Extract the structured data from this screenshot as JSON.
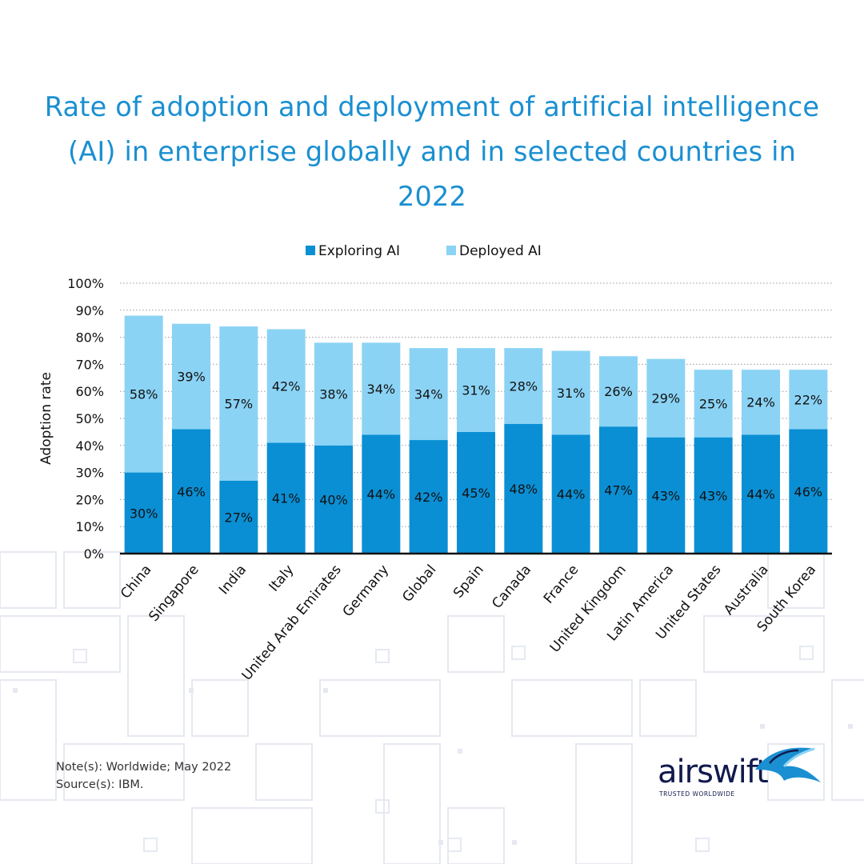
{
  "title": "Rate of adoption and deployment of artificial intelligence (AI) in enterprise globally and in selected countries in 2022",
  "notes": {
    "note": "Note(s): Worldwide; May 2022",
    "source": "Source(s): IBM."
  },
  "brand": {
    "name": "airswift",
    "tagline": "TRUSTED WORLDWIDE",
    "icon": "swift-bird-icon"
  },
  "colors": {
    "title": "#1a8fd1",
    "exploring": "#0a8fd4",
    "deployed": "#8bd3f5"
  },
  "chart_data": {
    "type": "bar",
    "stacked": true,
    "title": "Rate of adoption and deployment of artificial intelligence (AI) in enterprise globally and in selected countries in 2022",
    "ylabel": "Adoption rate",
    "xlabel": "",
    "ylim": [
      0,
      100
    ],
    "yticks": [
      "0%",
      "10%",
      "20%",
      "30%",
      "40%",
      "50%",
      "60%",
      "70%",
      "80%",
      "90%",
      "100%"
    ],
    "grid": true,
    "legend_position": "top-center",
    "categories": [
      "China",
      "Singapore",
      "India",
      "Italy",
      "United Arab Emirates",
      "Germany",
      "Global",
      "Spain",
      "Canada",
      "France",
      "United Kingdom",
      "Latin America",
      "United States",
      "Australia",
      "South Korea"
    ],
    "series": [
      {
        "name": "Exploring AI",
        "values": [
          30,
          46,
          27,
          41,
          40,
          44,
          42,
          45,
          48,
          44,
          47,
          43,
          43,
          44,
          46
        ],
        "labels": [
          "30%",
          "46%",
          "27%",
          "41%",
          "40%",
          "44%",
          "42%",
          "45%",
          "48%",
          "44%",
          "47%",
          "43%",
          "43%",
          "44%",
          "46%"
        ]
      },
      {
        "name": "Deployed AI",
        "values": [
          58,
          39,
          57,
          42,
          38,
          34,
          34,
          31,
          28,
          31,
          26,
          29,
          25,
          24,
          22
        ],
        "labels": [
          "58%",
          "39%",
          "57%",
          "42%",
          "38%",
          "34%",
          "34%",
          "31%",
          "28%",
          "31%",
          "26%",
          "29%",
          "25%",
          "24%",
          "22%"
        ]
      }
    ]
  }
}
